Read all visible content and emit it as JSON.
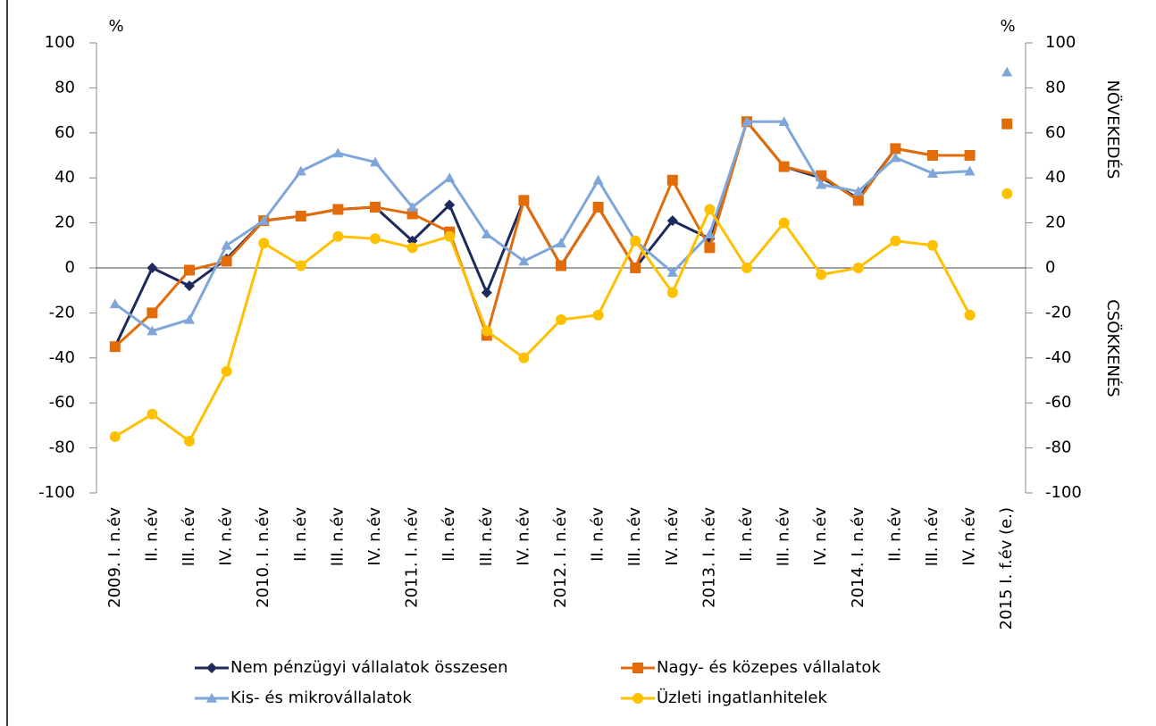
{
  "chart_data": {
    "type": "line",
    "y_unit": "%",
    "y2_unit": "%",
    "y2_label_top": "NÖVEKEDÉS",
    "y2_label_bottom": "CSÖKKENÉS",
    "categories": [
      "2009. I. n.év",
      "II. n.év",
      "III. n.év",
      "IV. n.év",
      "2010. I. n.év",
      "II. n.év",
      "III. n.év",
      "IV. n.év",
      "2011. I. n.év",
      "II. n.év",
      "III. n.év",
      "IV. n.év",
      "2012. I. n.év",
      "II. n.év",
      "III. n.év",
      "IV. n.év",
      "2013. I. n.év",
      "II. n.év",
      "III. n.év",
      "IV. n.év",
      "2014. I. n.év",
      "II. n.év",
      "III. n.év",
      "IV. n.év",
      "2015 I. f.év (e.)"
    ],
    "connect_last": false,
    "series": [
      {
        "name": "Nem pénzügyi vállalatok összesen",
        "color": "#1f2a5c",
        "marker": "diamond",
        "values": [
          -35,
          0,
          -8,
          4,
          21,
          23,
          26,
          27,
          12,
          28,
          -11,
          30,
          1,
          27,
          0,
          21,
          13,
          65,
          45,
          40,
          31,
          53,
          50,
          50,
          64
        ]
      },
      {
        "name": "Nagy- és közepes vállalatok",
        "color": "#e36c0a",
        "marker": "square",
        "values": [
          -35,
          -20,
          -1,
          3,
          21,
          23,
          26,
          27,
          24,
          16,
          -30,
          30,
          1,
          27,
          0,
          39,
          9,
          65,
          45,
          41,
          30,
          53,
          50,
          50,
          64
        ]
      },
      {
        "name": "Kis- és mikrovállalatok",
        "color": "#7ea6d9",
        "marker": "triangle",
        "values": [
          -16,
          -28,
          -23,
          10,
          21,
          43,
          51,
          47,
          27,
          40,
          15,
          3,
          11,
          39,
          12,
          -2,
          15,
          65,
          65,
          37,
          34,
          49,
          42,
          43,
          87
        ]
      },
      {
        "name": "Üzleti ingatlanhitelek",
        "color": "#ffc000",
        "marker": "circle",
        "values": [
          -75,
          -65,
          -77,
          -46,
          11,
          1,
          14,
          13,
          9,
          14,
          -28,
          -40,
          -23,
          -21,
          12,
          -11,
          26,
          0,
          20,
          -3,
          0,
          12,
          10,
          -21,
          33
        ]
      }
    ],
    "ylim": [
      -100,
      100
    ],
    "yticks": [
      -100,
      -80,
      -60,
      -40,
      -20,
      0,
      20,
      40,
      60,
      80,
      100
    ],
    "y2lim": [
      -100,
      100
    ],
    "y2ticks": [
      -100,
      -80,
      -60,
      -40,
      -20,
      0,
      20,
      40,
      60,
      80,
      100
    ]
  }
}
